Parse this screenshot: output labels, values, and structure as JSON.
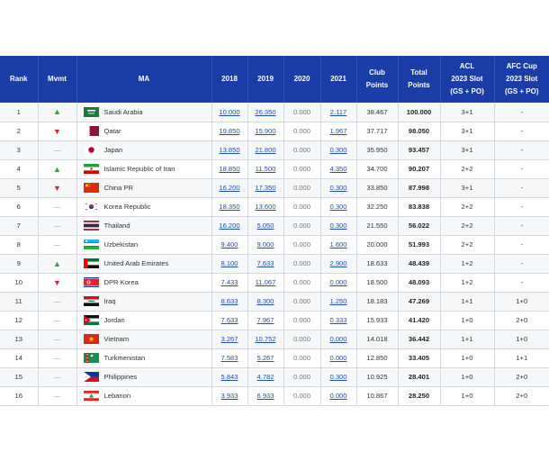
{
  "header": {
    "rank": "Rank",
    "mvmt": "Mvmt",
    "ma": "MA",
    "y2018": "2018",
    "y2019": "2019",
    "y2020": "2020",
    "y2021": "2021",
    "club_1": "Club",
    "club_2": "Points",
    "total_1": "Total",
    "total_2": "Points",
    "acl_1": "ACL",
    "acl_2": "2023 Slot",
    "acl_3": "(GS + PO)",
    "afc_1": "AFC Cup",
    "afc_2": "2023 Slot",
    "afc_3": "(GS + PO)"
  },
  "colors": {
    "header_bg": "#1b3da8",
    "up": "#2ea040",
    "down": "#d62828",
    "link": "#1f4fb0"
  },
  "rows": [
    {
      "rank": "1",
      "mv": "▲",
      "mvclass": "up",
      "flag": "sa",
      "ma": "Saudi Arabia",
      "y2018": "10.000",
      "y2019": "26.350",
      "y2020": "0.000",
      "y2021": "2.117",
      "club": "38.467",
      "total": "100.000",
      "acl": "3+1",
      "afc": "-"
    },
    {
      "rank": "2",
      "mv": "▼",
      "mvclass": "down",
      "flag": "qa",
      "ma": "Qatar",
      "y2018": "19.850",
      "y2019": "15.900",
      "y2020": "0.000",
      "y2021": "1.967",
      "club": "37.717",
      "total": "98.050",
      "acl": "3+1",
      "afc": "-"
    },
    {
      "rank": "3",
      "mv": "—",
      "mvclass": "same",
      "flag": "jp",
      "ma": "Japan",
      "y2018": "13.850",
      "y2019": "21.800",
      "y2020": "0.000",
      "y2021": "0.300",
      "club": "35.950",
      "total": "93.457",
      "acl": "3+1",
      "afc": "-"
    },
    {
      "rank": "4",
      "mv": "▲",
      "mvclass": "up",
      "flag": "ir",
      "ma": "Islamic Republic of Iran",
      "y2018": "18.850",
      "y2019": "11.500",
      "y2020": "0.000",
      "y2021": "4.350",
      "club": "34.700",
      "total": "90.207",
      "acl": "2+2",
      "afc": "-"
    },
    {
      "rank": "5",
      "mv": "▼",
      "mvclass": "down",
      "flag": "cn",
      "ma": "China PR",
      "y2018": "16.200",
      "y2019": "17.350",
      "y2020": "0.000",
      "y2021": "0.300",
      "club": "33.850",
      "total": "87.998",
      "acl": "3+1",
      "afc": "-"
    },
    {
      "rank": "6",
      "mv": "—",
      "mvclass": "same",
      "flag": "kr",
      "ma": "Korea Republic",
      "y2018": "18.350",
      "y2019": "13.600",
      "y2020": "0.000",
      "y2021": "0.300",
      "club": "32.250",
      "total": "83.838",
      "acl": "2+2",
      "afc": "-"
    },
    {
      "rank": "7",
      "mv": "—",
      "mvclass": "same",
      "flag": "th",
      "ma": "Thailand",
      "y2018": "16.200",
      "y2019": "5.050",
      "y2020": "0.000",
      "y2021": "0.300",
      "club": "21.550",
      "total": "56.022",
      "acl": "2+2",
      "afc": "-"
    },
    {
      "rank": "8",
      "mv": "—",
      "mvclass": "same",
      "flag": "uz",
      "ma": "Uzbekistan",
      "y2018": "9.400",
      "y2019": "9.000",
      "y2020": "0.000",
      "y2021": "1.600",
      "club": "20.000",
      "total": "51.993",
      "acl": "2+2",
      "afc": "-"
    },
    {
      "rank": "9",
      "mv": "▲",
      "mvclass": "up",
      "flag": "ae",
      "ma": "United Arab Emirates",
      "y2018": "8.100",
      "y2019": "7.633",
      "y2020": "0.000",
      "y2021": "2.900",
      "club": "18.633",
      "total": "48.439",
      "acl": "1+2",
      "afc": "-"
    },
    {
      "rank": "10",
      "mv": "▼",
      "mvclass": "down",
      "flag": "kp",
      "ma": "DPR Korea",
      "y2018": "7.433",
      "y2019": "11.067",
      "y2020": "0.000",
      "y2021": "0.000",
      "club": "18.500",
      "total": "48.093",
      "acl": "1+2",
      "afc": "-"
    },
    {
      "rank": "11",
      "mv": "—",
      "mvclass": "same",
      "flag": "iq",
      "ma": "Iraq",
      "y2018": "8.633",
      "y2019": "8.300",
      "y2020": "0.000",
      "y2021": "1.250",
      "club": "18.183",
      "total": "47.269",
      "acl": "1+1",
      "afc": "1+0"
    },
    {
      "rank": "12",
      "mv": "—",
      "mvclass": "same",
      "flag": "jo",
      "ma": "Jordan",
      "y2018": "7.633",
      "y2019": "7.967",
      "y2020": "0.000",
      "y2021": "0.333",
      "club": "15.933",
      "total": "41.420",
      "acl": "1+0",
      "afc": "2+0"
    },
    {
      "rank": "13",
      "mv": "—",
      "mvclass": "same",
      "flag": "vn",
      "ma": "Vietnam",
      "y2018": "3.267",
      "y2019": "10.752",
      "y2020": "0.000",
      "y2021": "0.000",
      "club": "14.018",
      "total": "36.442",
      "acl": "1+1",
      "afc": "1+0"
    },
    {
      "rank": "14",
      "mv": "—",
      "mvclass": "same",
      "flag": "tm",
      "ma": "Turkmenistan",
      "y2018": "7.583",
      "y2019": "5.267",
      "y2020": "0.000",
      "y2021": "0.000",
      "club": "12.850",
      "total": "33.405",
      "acl": "1+0",
      "afc": "1+1"
    },
    {
      "rank": "15",
      "mv": "—",
      "mvclass": "same",
      "flag": "ph",
      "ma": "Philippines",
      "y2018": "5.843",
      "y2019": "4.782",
      "y2020": "0.000",
      "y2021": "0.300",
      "club": "10.925",
      "total": "28.401",
      "acl": "1+0",
      "afc": "2+0"
    },
    {
      "rank": "16",
      "mv": "—",
      "mvclass": "same",
      "flag": "lb",
      "ma": "Lebanon",
      "y2018": "3.933",
      "y2019": "6.933",
      "y2020": "0.000",
      "y2021": "0.000",
      "club": "10.867",
      "total": "28.250",
      "acl": "1+0",
      "afc": "2+0"
    }
  ]
}
